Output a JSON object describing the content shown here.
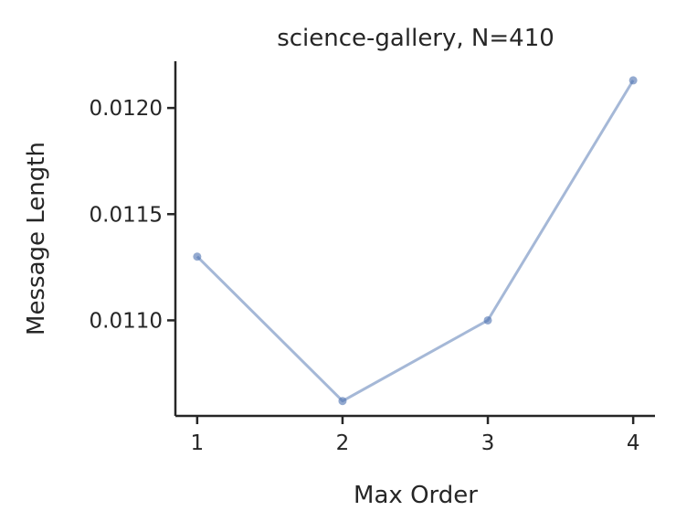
{
  "chart_data": {
    "type": "line",
    "title": "science-gallery, N=410",
    "xlabel": "Max Order",
    "ylabel": "Message Length",
    "x": [
      1,
      2,
      3,
      4
    ],
    "xticks": [
      "1",
      "2",
      "3",
      "4"
    ],
    "yticks": [
      0.011,
      0.0115,
      0.012
    ],
    "ytick_labels": [
      "0.0110",
      "0.0115",
      "0.0120"
    ],
    "xlim": [
      0.85,
      4.15
    ],
    "ylim": [
      0.01055,
      0.01222
    ],
    "grid": false,
    "series": [
      {
        "values": [
          0.0113,
          0.01062,
          0.011,
          0.01213
        ],
        "color": "#4c72b0"
      }
    ]
  }
}
